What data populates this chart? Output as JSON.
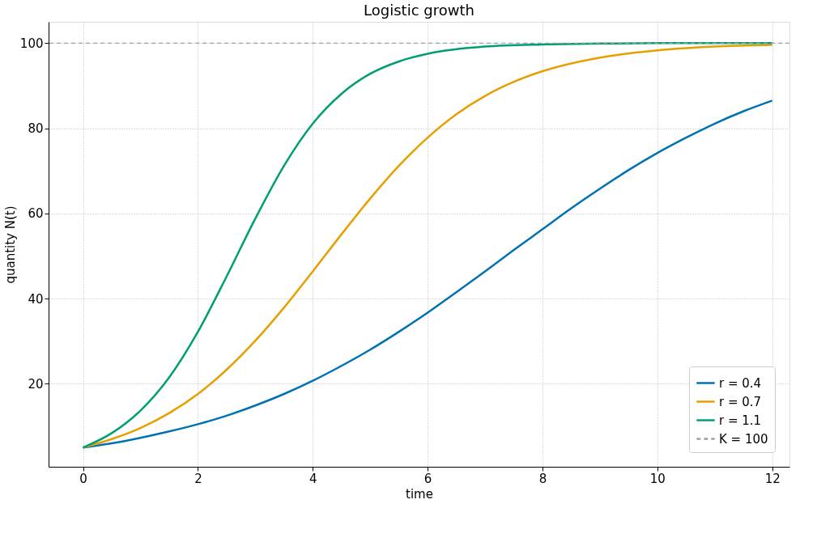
{
  "chart_data": {
    "type": "line",
    "title": "Logistic growth",
    "xlabel": "time",
    "ylabel": "quantity N(t)",
    "series": [
      {
        "name": "r = 0.4",
        "color": "#0072b2",
        "x": [
          0,
          0.5,
          1,
          1.5,
          2,
          2.5,
          3,
          3.5,
          4,
          4.5,
          5,
          5.5,
          6,
          6.5,
          7,
          7.5,
          8,
          8.5,
          9,
          9.5,
          10,
          10.5,
          11,
          11.5,
          12
        ],
        "values": [
          5,
          6.0,
          7.3,
          8.8,
          10.5,
          12.5,
          14.9,
          17.6,
          20.7,
          24.2,
          28.0,
          32.2,
          36.7,
          41.5,
          46.4,
          51.4,
          56.3,
          61.2,
          65.8,
          70.2,
          74.2,
          77.8,
          81.1,
          84.0,
          86.5
        ]
      },
      {
        "name": "r = 0.7",
        "color": "#e69f00",
        "x": [
          0,
          0.5,
          1,
          1.5,
          2,
          2.5,
          3,
          3.5,
          4,
          4.5,
          5,
          5.5,
          6,
          6.5,
          7,
          7.5,
          8,
          9,
          10,
          11,
          12
        ],
        "values": [
          5,
          7.0,
          9.6,
          13.1,
          17.6,
          23.3,
          30.1,
          37.9,
          46.4,
          55.1,
          63.5,
          71.2,
          77.8,
          83.3,
          87.6,
          90.9,
          93.4,
          96.6,
          98.3,
          99.2,
          99.6
        ]
      },
      {
        "name": "r = 1.1",
        "color": "#009e73",
        "x": [
          0,
          0.5,
          1,
          1.5,
          2,
          2.5,
          3,
          3.5,
          4,
          4.5,
          5,
          5.5,
          6,
          7,
          8,
          9,
          10,
          12
        ],
        "values": [
          5,
          8.4,
          13.7,
          21.5,
          32.2,
          45.2,
          58.8,
          71.2,
          81.1,
          88.1,
          92.8,
          95.7,
          97.5,
          99.2,
          99.7,
          99.9,
          100.0,
          100.0
        ]
      }
    ],
    "ref_lines": [
      {
        "axis": "y",
        "value": 100,
        "label": "K = 100",
        "color": "#a0a0a0",
        "line_style": "dashed"
      }
    ],
    "xlim": [
      -0.6,
      12.3
    ],
    "xticks": [
      0,
      2,
      4,
      6,
      8,
      10,
      12
    ],
    "ylim": [
      0.5,
      105
    ],
    "yticks": [
      20,
      40,
      60,
      80,
      100
    ],
    "grid": true,
    "legend": "bottom right",
    "marker": "none"
  }
}
